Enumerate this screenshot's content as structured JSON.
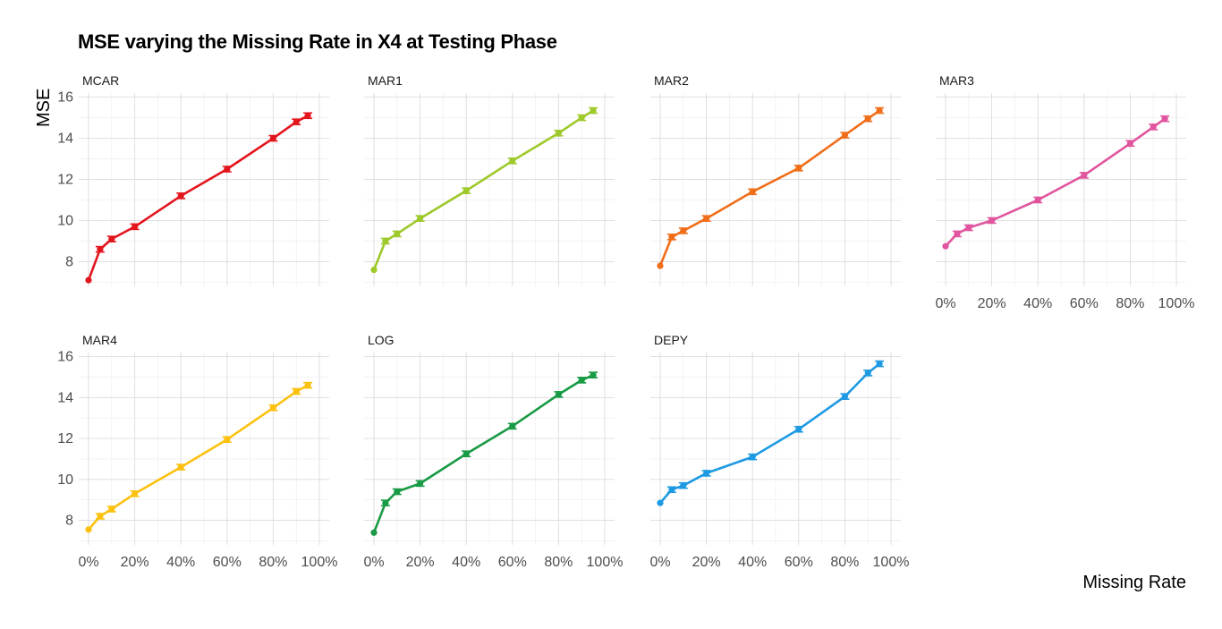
{
  "title": "MSE varying the Missing Rate in X4 at Testing Phase",
  "ylabel": "MSE",
  "xlabel": "Missing Rate",
  "chart_data": {
    "type": "line",
    "title": "MSE varying the Missing Rate in X4 at Testing Phase",
    "xlabel": "Missing Rate",
    "ylabel": "MSE",
    "x_tick_labels": [
      "0%",
      "20%",
      "40%",
      "60%",
      "80%",
      "100%"
    ],
    "y_ticks": [
      8,
      10,
      12,
      14,
      16
    ],
    "xlim": [
      0,
      1
    ],
    "ylim": [
      6.8,
      16.2
    ],
    "grid": true,
    "legend": "none",
    "x": [
      0,
      0.05,
      0.1,
      0.2,
      0.4,
      0.6,
      0.8,
      0.9,
      0.95
    ],
    "series": [
      {
        "name": "MCAR",
        "color": "#e3151d",
        "values": [
          7.1,
          8.6,
          9.1,
          9.7,
          11.2,
          12.5,
          14.0,
          14.8,
          15.1
        ]
      },
      {
        "name": "MAR1",
        "color": "#9ec92a",
        "values": [
          7.6,
          9.0,
          9.35,
          10.1,
          11.45,
          12.9,
          14.25,
          15.0,
          15.35
        ]
      },
      {
        "name": "MAR2",
        "color": "#f06e19",
        "values": [
          7.8,
          9.2,
          9.5,
          10.1,
          11.4,
          12.55,
          14.15,
          14.95,
          15.35
        ]
      },
      {
        "name": "MAR3",
        "color": "#e0559e",
        "values": [
          8.75,
          9.35,
          9.65,
          10.0,
          11.0,
          12.2,
          13.75,
          14.55,
          14.95
        ]
      },
      {
        "name": "MAR4",
        "color": "#fcc10f",
        "values": [
          7.55,
          8.2,
          8.55,
          9.3,
          10.6,
          11.95,
          13.5,
          14.3,
          14.6
        ]
      },
      {
        "name": "LOG",
        "color": "#199a45",
        "values": [
          7.4,
          8.85,
          9.4,
          9.8,
          11.25,
          12.6,
          14.15,
          14.85,
          15.1
        ]
      },
      {
        "name": "DEPY",
        "color": "#1e9ae3",
        "values": [
          8.85,
          9.5,
          9.7,
          10.3,
          11.1,
          12.45,
          14.05,
          15.2,
          15.65
        ]
      }
    ]
  }
}
